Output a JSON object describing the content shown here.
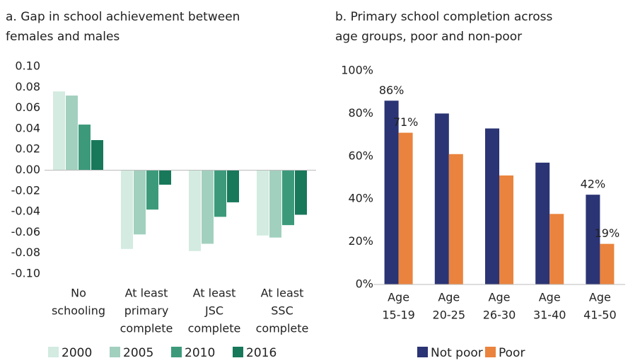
{
  "chart_data": [
    {
      "type": "bar",
      "title": [
        "a. Gap in school achievement between",
        "females and males"
      ],
      "categories": [
        [
          "No",
          "schooling"
        ],
        [
          "At least",
          "primary",
          "complete"
        ],
        [
          "At least",
          "JSC",
          "complete"
        ],
        [
          "At least",
          "SSC",
          "complete"
        ]
      ],
      "series": [
        {
          "name": "2000",
          "color": "#d3ebe0",
          "values": [
            0.076,
            -0.076,
            -0.078,
            -0.063
          ]
        },
        {
          "name": "2005",
          "color": "#a2d0be",
          "values": [
            0.072,
            -0.062,
            -0.071,
            -0.065
          ]
        },
        {
          "name": "2010",
          "color": "#3c9a7b",
          "values": [
            0.044,
            -0.038,
            -0.045,
            -0.053
          ]
        },
        {
          "name": "2016",
          "color": "#17785a",
          "values": [
            0.029,
            -0.014,
            -0.031,
            -0.043
          ]
        }
      ],
      "ylim": [
        -0.1,
        0.1
      ],
      "yticks": [
        {
          "value": -0.1,
          "label": "-0.10"
        },
        -0.08,
        -0.06,
        -0.04,
        -0.02,
        {
          "value": 0,
          "label": "0.00"
        },
        0.02,
        0.04,
        0.06,
        0.08,
        {
          "value": 0.1,
          "label": "0.10"
        }
      ],
      "legend": "bottom"
    },
    {
      "type": "bar",
      "title": [
        "b. Primary school completion across",
        "age groups, poor and non-poor"
      ],
      "categories": [
        [
          "Age",
          "15-19"
        ],
        [
          "Age",
          "20-25"
        ],
        [
          "Age",
          "26-30"
        ],
        [
          "Age",
          "31-40"
        ],
        [
          "Age",
          "41-50"
        ]
      ],
      "series": [
        {
          "name": "Not poor",
          "color": "#2b3474",
          "values": [
            86,
            80,
            73,
            57,
            42
          ],
          "value_labels": [
            "86%",
            null,
            null,
            null,
            "42%"
          ]
        },
        {
          "name": "Poor",
          "color": "#ea833d",
          "values": [
            71,
            61,
            51,
            33,
            19
          ],
          "value_labels": [
            "71%",
            null,
            null,
            null,
            "19%"
          ]
        }
      ],
      "ylim": [
        0,
        100
      ],
      "yticks": [
        {
          "value": 0,
          "label": "0%"
        },
        {
          "value": 20,
          "label": "20%"
        },
        {
          "value": 40,
          "label": "40%"
        },
        {
          "value": 60,
          "label": "60%"
        },
        {
          "value": 80,
          "label": "80%"
        },
        {
          "value": 100,
          "label": "100%"
        }
      ],
      "legend": "bottom"
    }
  ]
}
